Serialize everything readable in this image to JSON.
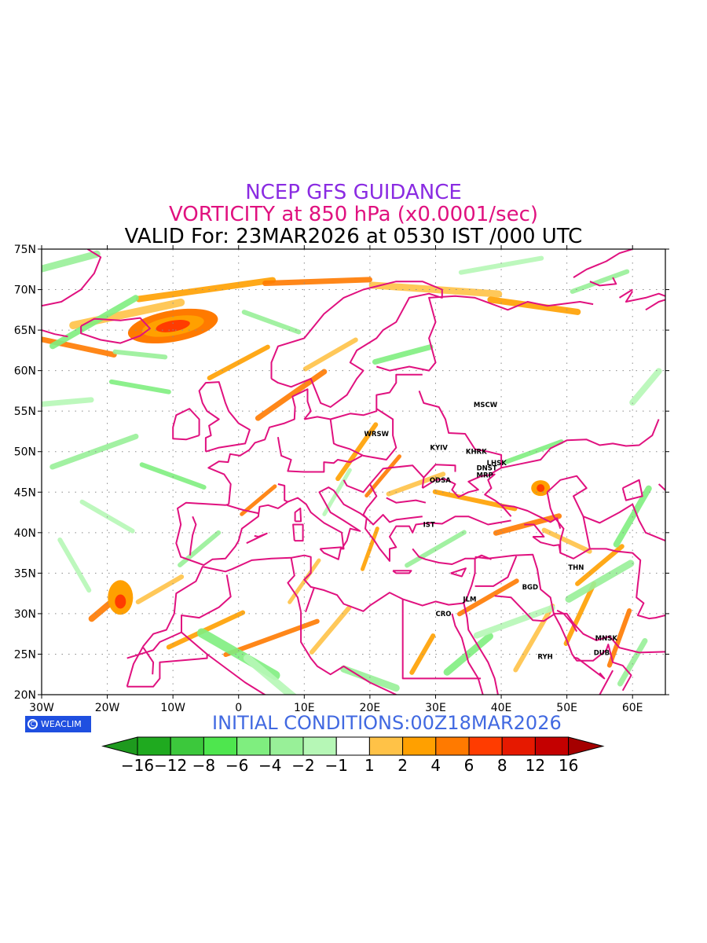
{
  "header": {
    "title": "NCEP GFS GUIDANCE",
    "subtitle": "VORTICITY at 850 hPa (x0.0001/sec)",
    "valid": "VALID For: 23MAR2026 at 0530 IST /000 UTC"
  },
  "footer": {
    "badge": "WEACLIM",
    "badge_icon": "copyright-icon",
    "initial": "INITIAL CONDITIONS:00Z18MAR2026"
  },
  "colors": {
    "border": "#e0117f",
    "title": "#8a2be2",
    "subtitle": "#e0117f",
    "initial": "#4169e1"
  },
  "map": {
    "lon_range": [
      -30,
      65
    ],
    "lat_range": [
      20,
      75
    ],
    "lon_ticks": [
      {
        "value": -30,
        "label": "30W"
      },
      {
        "value": -20,
        "label": "20W"
      },
      {
        "value": -10,
        "label": "10W"
      },
      {
        "value": 0,
        "label": "0"
      },
      {
        "value": 10,
        "label": "10E"
      },
      {
        "value": 20,
        "label": "20E"
      },
      {
        "value": 30,
        "label": "30E"
      },
      {
        "value": 40,
        "label": "40E"
      },
      {
        "value": 50,
        "label": "50E"
      },
      {
        "value": 60,
        "label": "60E"
      }
    ],
    "lat_ticks": [
      {
        "value": 75,
        "label": "75N"
      },
      {
        "value": 70,
        "label": "70N"
      },
      {
        "value": 65,
        "label": "65N"
      },
      {
        "value": 60,
        "label": "60N"
      },
      {
        "value": 55,
        "label": "55N"
      },
      {
        "value": 50,
        "label": "50N"
      },
      {
        "value": 45,
        "label": "45N"
      },
      {
        "value": 40,
        "label": "40N"
      },
      {
        "value": 35,
        "label": "35N"
      },
      {
        "value": 30,
        "label": "30N"
      },
      {
        "value": 25,
        "label": "25N"
      },
      {
        "value": 20,
        "label": "20N"
      }
    ],
    "cities": [
      {
        "label": "MSCW",
        "lon": 37.6,
        "lat": 55.8
      },
      {
        "label": "WRSW",
        "lon": 21.0,
        "lat": 52.2
      },
      {
        "label": "KYIV",
        "lon": 30.5,
        "lat": 50.5
      },
      {
        "label": "KHRK",
        "lon": 36.2,
        "lat": 50.0
      },
      {
        "label": "LHSK",
        "lon": 39.3,
        "lat": 48.6
      },
      {
        "label": "DNST",
        "lon": 37.8,
        "lat": 48.0
      },
      {
        "label": "MRP",
        "lon": 37.5,
        "lat": 47.1
      },
      {
        "label": "ODSA",
        "lon": 30.7,
        "lat": 46.5
      },
      {
        "label": "IST",
        "lon": 29.0,
        "lat": 41.0
      },
      {
        "label": "THN",
        "lon": 51.4,
        "lat": 35.7
      },
      {
        "label": "BGD",
        "lon": 44.4,
        "lat": 33.3
      },
      {
        "label": "JLM",
        "lon": 35.2,
        "lat": 31.8
      },
      {
        "label": "CRO",
        "lon": 31.2,
        "lat": 30.0
      },
      {
        "label": "MNSK",
        "lon": 56.0,
        "lat": 27.0
      },
      {
        "label": "RYH",
        "lon": 46.7,
        "lat": 24.7
      },
      {
        "label": "DUB",
        "lon": 55.3,
        "lat": 25.2
      }
    ]
  },
  "legend": {
    "colors": [
      "#1faa1f",
      "#3cc83c",
      "#4ee64e",
      "#7fee7f",
      "#98f098",
      "#b6f7b6",
      "#ffffff",
      "#ffc247",
      "#ffa000",
      "#ff7a00",
      "#ff3c00",
      "#e61900",
      "#c40000"
    ],
    "end_left": "#1e9a1e",
    "end_right": "#a50000",
    "labels": [
      "-16",
      "-12",
      "-8",
      "-6",
      "-4",
      "-2",
      "-1",
      "1",
      "2",
      "4",
      "6",
      "8",
      "12",
      "16"
    ]
  }
}
